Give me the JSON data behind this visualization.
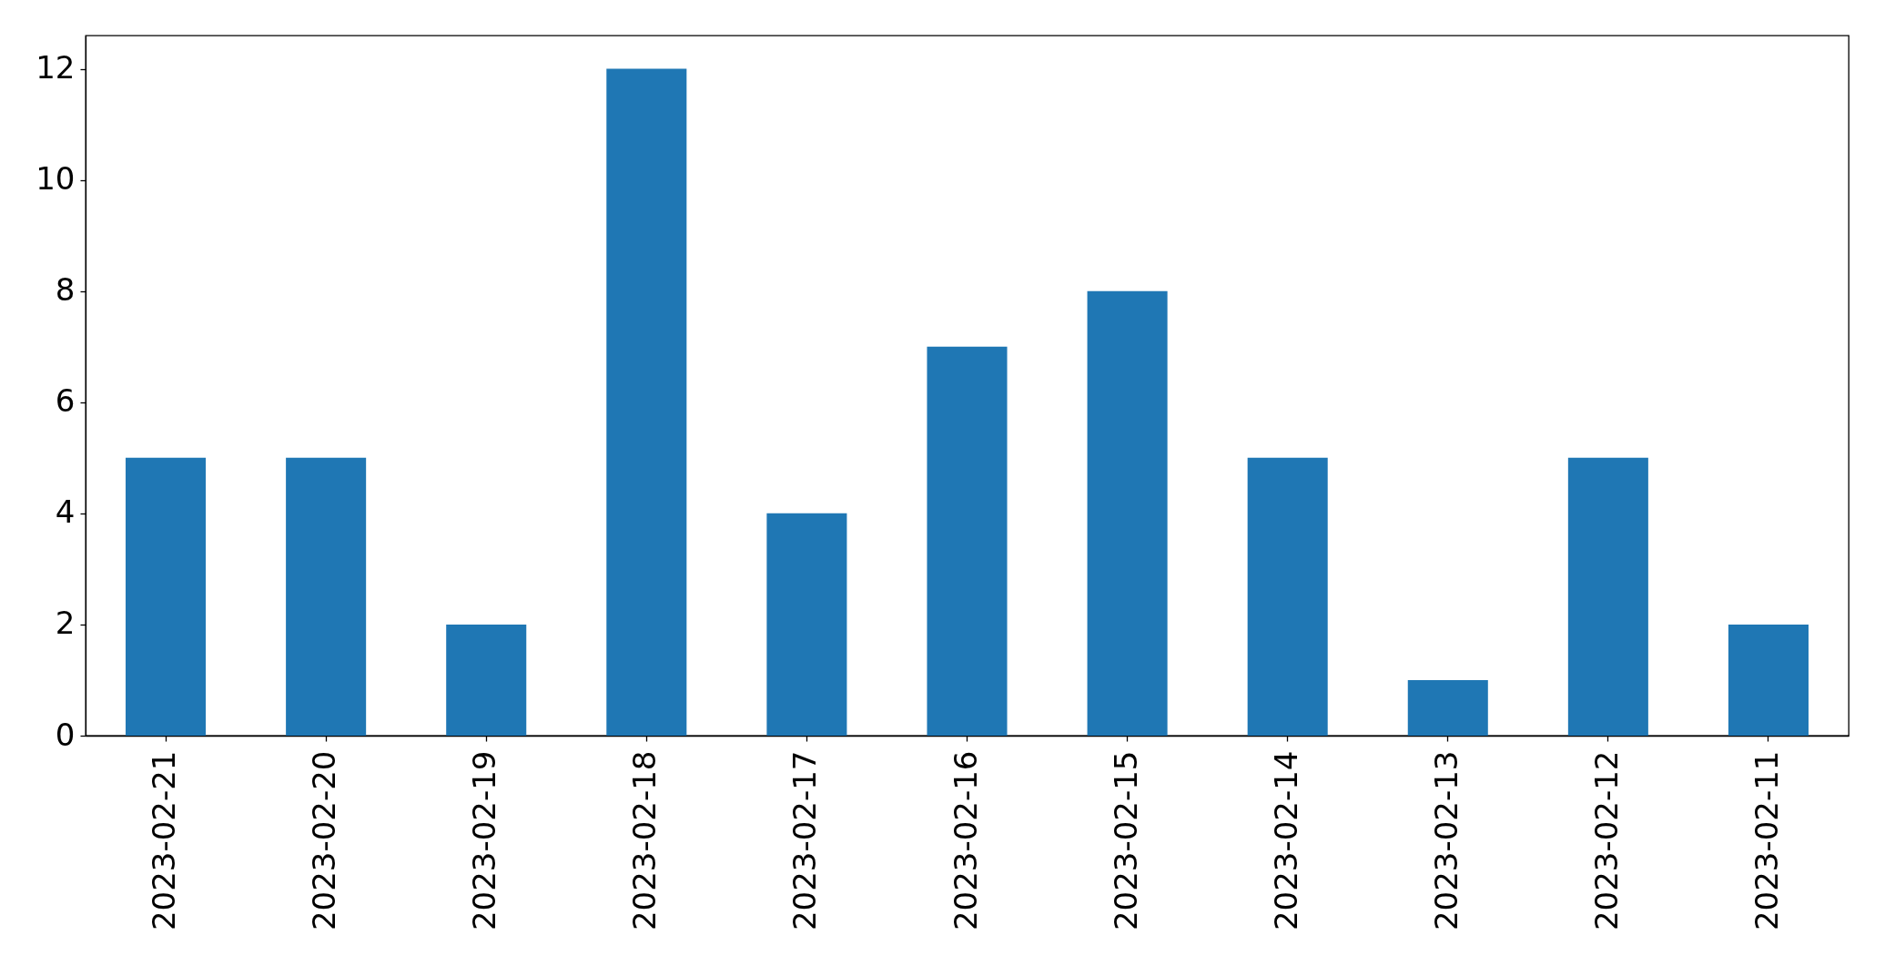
{
  "chart_data": {
    "type": "bar",
    "categories": [
      "2023-02-21",
      "2023-02-20",
      "2023-02-19",
      "2023-02-18",
      "2023-02-17",
      "2023-02-16",
      "2023-02-15",
      "2023-02-14",
      "2023-02-13",
      "2023-02-12",
      "2023-02-11"
    ],
    "values": [
      5,
      5,
      2,
      12,
      4,
      7,
      8,
      5,
      1,
      5,
      2
    ],
    "color": "#1f77b4",
    "ylim": [
      0,
      12.6
    ],
    "yticks": [
      0,
      2,
      4,
      6,
      8,
      10,
      12
    ]
  }
}
